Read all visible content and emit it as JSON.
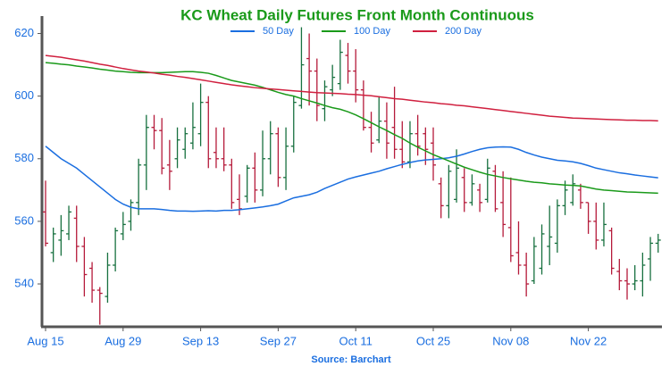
{
  "chart_data": {
    "type": "ohlc",
    "title": "KC Wheat Daily Futures Front Month Continuous",
    "source": "Source: Barchart",
    "categories": [
      "Aug 15",
      null,
      null,
      null,
      null,
      null,
      null,
      null,
      null,
      null,
      "Aug 29",
      null,
      null,
      null,
      null,
      null,
      null,
      null,
      null,
      null,
      "Sep 13",
      null,
      null,
      null,
      null,
      null,
      null,
      null,
      null,
      null,
      "Sep 27",
      null,
      null,
      null,
      null,
      null,
      null,
      null,
      null,
      null,
      "Oct 11",
      null,
      null,
      null,
      null,
      null,
      null,
      null,
      null,
      null,
      "Oct 25",
      null,
      null,
      null,
      null,
      null,
      null,
      null,
      null,
      null,
      "Nov 08",
      null,
      null,
      null,
      null,
      null,
      null,
      null,
      null,
      null,
      "Nov 22",
      null,
      null,
      null,
      null,
      null,
      null,
      null,
      null,
      null
    ],
    "open": [
      563,
      550,
      554,
      556,
      561,
      552,
      545,
      538,
      536,
      546,
      556,
      560,
      566,
      578,
      590,
      589,
      578,
      580,
      583,
      585,
      588,
      598,
      582,
      580,
      578,
      567,
      568,
      577,
      570,
      580,
      588,
      574,
      584,
      597,
      612,
      608,
      596,
      602,
      604,
      613,
      608,
      602,
      590,
      586,
      592,
      590,
      583,
      579,
      588,
      588,
      585,
      572,
      565,
      567,
      574,
      566,
      570,
      567,
      576,
      566,
      558,
      550,
      546,
      541,
      545,
      552,
      553,
      565,
      566,
      570,
      566,
      560,
      554,
      557,
      544,
      541,
      540,
      541,
      548,
      553
    ],
    "high": [
      573,
      558,
      562,
      565,
      565,
      555,
      547,
      539,
      550,
      558,
      563,
      567,
      580,
      594,
      594,
      593,
      586,
      590,
      590,
      598,
      604,
      600,
      590,
      590,
      580,
      575,
      578,
      582,
      589,
      592,
      590,
      590,
      600,
      622,
      620,
      612,
      605,
      610,
      618,
      617,
      615,
      605,
      595,
      600,
      598,
      603,
      592,
      592,
      594,
      590,
      590,
      574,
      578,
      583,
      577,
      575,
      572,
      580,
      578,
      576,
      574,
      560,
      550,
      555,
      559,
      565,
      567,
      573,
      575,
      572,
      566,
      566,
      566,
      558,
      548,
      545,
      546,
      550,
      555,
      556
    ],
    "low": [
      552,
      547,
      549,
      554,
      547,
      536,
      534,
      527,
      534,
      544,
      554,
      557,
      562,
      570,
      583,
      575,
      570,
      577,
      580,
      583,
      584,
      577,
      577,
      576,
      564,
      562,
      566,
      566,
      568,
      575,
      571,
      570,
      582,
      596,
      597,
      592,
      592,
      600,
      602,
      604,
      598,
      589,
      582,
      585,
      580,
      580,
      577,
      577,
      581,
      578,
      573,
      561,
      561,
      566,
      563,
      565,
      563,
      566,
      563,
      555,
      547,
      543,
      536,
      540,
      543,
      546,
      550,
      562,
      565,
      564,
      556,
      551,
      552,
      543,
      538,
      535,
      538,
      536,
      541,
      550
    ],
    "close": [
      553,
      556,
      557,
      563,
      552,
      543,
      538,
      537,
      546,
      557,
      559,
      566,
      578,
      590,
      589,
      577,
      576,
      586,
      588,
      590,
      598,
      580,
      580,
      578,
      566,
      564,
      577,
      570,
      580,
      588,
      574,
      584,
      598,
      610,
      608,
      597,
      603,
      606,
      614,
      608,
      602,
      590,
      585,
      592,
      585,
      583,
      579,
      588,
      584,
      583,
      578,
      565,
      576,
      577,
      566,
      572,
      566,
      577,
      564,
      559,
      549,
      546,
      540,
      552,
      556,
      555,
      565,
      570,
      572,
      566,
      560,
      554,
      559,
      545,
      541,
      540,
      541,
      546,
      553,
      554
    ],
    "up_color": "#17703f",
    "down_color": "#b51a3a",
    "series": [
      {
        "name": "50 Day",
        "color": "#1a6ee0",
        "values": [
          584,
          582,
          580,
          578.5,
          577,
          575,
          573,
          571,
          569,
          567,
          565.5,
          564.5,
          564,
          564,
          564,
          563.8,
          563.5,
          563.3,
          563.3,
          563.2,
          563.3,
          563.4,
          563.3,
          563.5,
          563.5,
          563.7,
          564,
          564.3,
          564.6,
          565,
          565.5,
          566.5,
          567.5,
          568,
          568.5,
          569.3,
          570.5,
          571.5,
          572.5,
          573.5,
          574.2,
          574.8,
          575.4,
          576,
          576.8,
          577.5,
          578.2,
          578.8,
          579.3,
          579.6,
          579.8,
          580,
          580.3,
          580.8,
          581.5,
          582.3,
          583,
          583.5,
          583.7,
          583.8,
          583.7,
          583,
          582,
          581.2,
          580.5,
          580,
          579.5,
          579.3,
          579,
          578.5,
          577.8,
          577,
          576.5,
          576,
          575.5,
          575.2,
          574.8,
          574.5,
          574.2,
          573.9
        ]
      },
      {
        "name": "100 Day",
        "color": "#1a9a1a",
        "values": [
          610.7,
          610.5,
          610.2,
          610,
          609.6,
          609.3,
          609,
          608.6,
          608.3,
          608,
          607.8,
          607.6,
          607.5,
          607.5,
          607.5,
          607.5,
          607.6,
          607.7,
          607.8,
          607.8,
          607.6,
          607.3,
          606.6,
          605.8,
          605,
          604.5,
          604,
          603.5,
          602.8,
          602,
          601.2,
          600.5,
          600,
          599.2,
          598.5,
          597.8,
          597,
          596.3,
          595.8,
          595,
          594,
          592.8,
          591.5,
          590.2,
          589,
          587.7,
          586.5,
          585,
          583.7,
          582.5,
          581.3,
          580.3,
          579.3,
          578.3,
          577.3,
          576.5,
          575.7,
          575,
          574.5,
          574,
          573.6,
          573.2,
          572.8,
          572.5,
          572.3,
          572,
          571.8,
          571.6,
          571.5,
          571.3,
          570.8,
          570.3,
          570,
          569.8,
          569.6,
          569.4,
          569.3,
          569.2,
          569.1,
          569
        ]
      },
      {
        "name": "200 Day",
        "color": "#d0203f",
        "values": [
          613,
          612.7,
          612.4,
          612,
          611.6,
          611.2,
          610.7,
          610.2,
          609.8,
          609.3,
          608.8,
          608.4,
          608,
          607.7,
          607.4,
          607,
          606.7,
          606.3,
          606,
          605.6,
          605.2,
          604.8,
          604.4,
          604,
          603.6,
          603.3,
          603,
          602.7,
          602.5,
          602.3,
          602.1,
          601.9,
          601.7,
          601.5,
          601.3,
          601.1,
          601,
          600.9,
          600.8,
          600.6,
          600.5,
          600.3,
          600.1,
          599.8,
          599.5,
          599.2,
          599,
          598.7,
          598.4,
          598.1,
          597.9,
          597.6,
          597.4,
          597.1,
          596.9,
          596.6,
          596.3,
          596,
          595.7,
          595.4,
          595.1,
          594.8,
          594.5,
          594.2,
          593.9,
          593.6,
          593.4,
          593.2,
          593,
          592.9,
          592.8,
          592.7,
          592.6,
          592.5,
          592.4,
          592.3,
          592.3,
          592.2,
          592.2,
          592.1
        ]
      }
    ],
    "ylim": [
      526.6,
      625
    ],
    "yticks": [
      540,
      560,
      580,
      600,
      620
    ]
  }
}
